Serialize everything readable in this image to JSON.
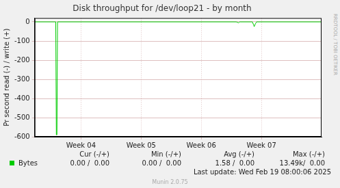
{
  "chart_data": {
    "type": "line",
    "title": "Disk throughput for /dev/loop21 - by month",
    "y_label": "Pr second read (-) / write (+)",
    "x": [
      3.73,
      4.08,
      4.09,
      4.1,
      4.11,
      7.08,
      7.1,
      7.12,
      7.14,
      7.35,
      7.37,
      7.38,
      7.4,
      7.42,
      8.5
    ],
    "series": [
      {
        "name": "Bytes",
        "color": "#00cc00",
        "values": [
          0,
          0,
          -590,
          -590,
          0,
          0,
          -2,
          -5,
          0,
          0,
          -15,
          -25,
          -10,
          0,
          0
        ]
      }
    ],
    "xlim": [
      3.73,
      8.5
    ],
    "xticks": [
      {
        "value": 4.5,
        "label": "Week 04"
      },
      {
        "value": 5.5,
        "label": "Week 05"
      },
      {
        "value": 6.5,
        "label": "Week 06"
      },
      {
        "value": 7.5,
        "label": "Week 07"
      }
    ],
    "ylim": [
      -600,
      20
    ],
    "yticks": [
      -600,
      -500,
      -400,
      -300,
      -200,
      -100,
      0
    ],
    "grid": true,
    "side_label": "RRDTOOL / TOBI OETIKER",
    "summary": {
      "headers": [
        "Cur (-/+)",
        "Min (-/+)",
        "Avg (-/+)",
        "Max (-/+)"
      ],
      "rows": [
        {
          "name": "Bytes",
          "color": "#00cc00",
          "values": [
            "0.00 /  0.00",
            "0.00 /  0.00",
            "1.58 /  0.00",
            "13.49k/  0.00"
          ]
        }
      ]
    },
    "last_update": "Last update: Wed Feb 19 08:00:06 2025",
    "footer": "Munin 2.0.75"
  }
}
